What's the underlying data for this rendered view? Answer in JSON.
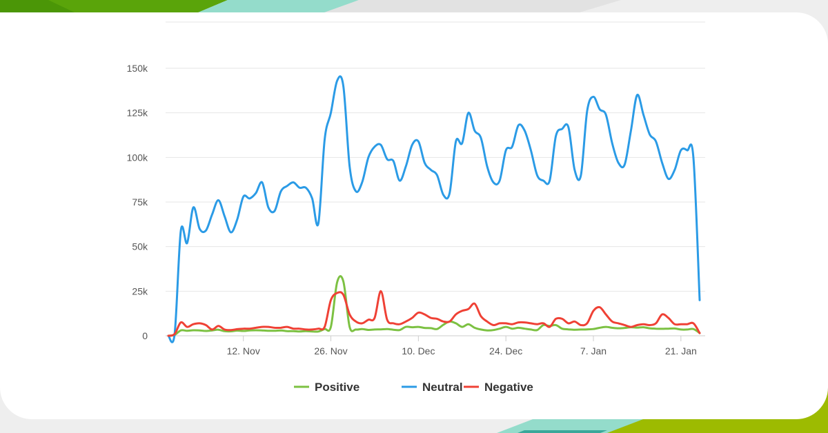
{
  "colors": {
    "positive": "#7cc142",
    "neutral": "#2b9be6",
    "negative": "#ef4135",
    "grid": "#e6e6e6",
    "accent_green": "#5aa40a",
    "accent_lime": "#a9c000",
    "accent_teal": "#94dccb"
  },
  "chart_data": {
    "type": "line",
    "title": "",
    "xlabel": "",
    "ylabel": "",
    "ylim": [
      0,
      150000
    ],
    "y_ticks": [
      {
        "value": 0,
        "label": "0"
      },
      {
        "value": 25000,
        "label": "25k"
      },
      {
        "value": 50000,
        "label": "50k"
      },
      {
        "value": 75000,
        "label": "75k"
      },
      {
        "value": 100000,
        "label": "100k"
      },
      {
        "value": 125000,
        "label": "125k"
      },
      {
        "value": 150000,
        "label": "150k"
      }
    ],
    "x_ticks": [
      {
        "date": "2017-11-12",
        "label": "12. Nov"
      },
      {
        "date": "2017-11-26",
        "label": "26. Nov"
      },
      {
        "date": "2017-12-10",
        "label": "10. Dec"
      },
      {
        "date": "2017-12-24",
        "label": "24. Dec"
      },
      {
        "date": "2018-01-07",
        "label": "7. Jan"
      },
      {
        "date": "2018-01-21",
        "label": "21. Jan"
      }
    ],
    "grid": true,
    "legend_position": "bottom-center",
    "x_dates": [
      "2017-10-31",
      "2017-11-01",
      "2017-11-02",
      "2017-11-03",
      "2017-11-04",
      "2017-11-05",
      "2017-11-06",
      "2017-11-07",
      "2017-11-08",
      "2017-11-09",
      "2017-11-10",
      "2017-11-11",
      "2017-11-12",
      "2017-11-13",
      "2017-11-14",
      "2017-11-15",
      "2017-11-16",
      "2017-11-17",
      "2017-11-18",
      "2017-11-19",
      "2017-11-20",
      "2017-11-21",
      "2017-11-22",
      "2017-11-23",
      "2017-11-24",
      "2017-11-25",
      "2017-11-26",
      "2017-11-27",
      "2017-11-28",
      "2017-11-29",
      "2017-11-30",
      "2017-12-01",
      "2017-12-02",
      "2017-12-03",
      "2017-12-04",
      "2017-12-05",
      "2017-12-06",
      "2017-12-07",
      "2017-12-08",
      "2017-12-09",
      "2017-12-10",
      "2017-12-11",
      "2017-12-12",
      "2017-12-13",
      "2017-12-14",
      "2017-12-15",
      "2017-12-16",
      "2017-12-17",
      "2017-12-18",
      "2017-12-19",
      "2017-12-20",
      "2017-12-21",
      "2017-12-22",
      "2017-12-23",
      "2017-12-24",
      "2017-12-25",
      "2017-12-26",
      "2017-12-27",
      "2017-12-28",
      "2017-12-29",
      "2017-12-30",
      "2017-12-31",
      "2018-01-01",
      "2018-01-02",
      "2018-01-03",
      "2018-01-04",
      "2018-01-05",
      "2018-01-06",
      "2018-01-07",
      "2018-01-08",
      "2018-01-09",
      "2018-01-10",
      "2018-01-11",
      "2018-01-12",
      "2018-01-13",
      "2018-01-14",
      "2018-01-15",
      "2018-01-16",
      "2018-01-17",
      "2018-01-18",
      "2018-01-19",
      "2018-01-20",
      "2018-01-21",
      "2018-01-22",
      "2018-01-23",
      "2018-01-24"
    ],
    "series": [
      {
        "name": "Positive",
        "values": [
          0,
          500,
          3000,
          2800,
          3100,
          3000,
          2700,
          3000,
          3400,
          2600,
          2500,
          2900,
          2700,
          3000,
          3100,
          3000,
          2800,
          2800,
          3000,
          2600,
          2600,
          2400,
          2600,
          2400,
          2400,
          3800,
          5000,
          30000,
          30500,
          5000,
          3500,
          3800,
          3300,
          3500,
          3600,
          3800,
          3400,
          3200,
          5000,
          4800,
          5000,
          4400,
          4300,
          3800,
          6200,
          8000,
          7000,
          5000,
          6500,
          4500,
          3500,
          3000,
          3200,
          4000,
          5000,
          4000,
          4500,
          4000,
          3500,
          3200,
          6000,
          5500,
          6000,
          4000,
          3600,
          3400,
          3500,
          3600,
          3800,
          4500,
          5000,
          4500,
          4200,
          4400,
          4800,
          4600,
          4800,
          4200,
          4000,
          3900,
          4000,
          4100,
          3500,
          3500,
          3800,
          1500
        ]
      },
      {
        "name": "Neutral",
        "values": [
          0,
          1000,
          59000,
          52000,
          72000,
          60000,
          59000,
          68000,
          76000,
          67000,
          58000,
          65000,
          78000,
          77000,
          80000,
          86000,
          72000,
          70000,
          81000,
          84000,
          86000,
          83000,
          83000,
          77000,
          63000,
          110000,
          125000,
          143000,
          140000,
          95000,
          81000,
          86000,
          100000,
          106000,
          107000,
          99000,
          98000,
          87000,
          95000,
          107000,
          109000,
          97000,
          93000,
          90000,
          79000,
          80000,
          109000,
          108000,
          125000,
          115000,
          111000,
          95000,
          86000,
          87000,
          104000,
          106000,
          118000,
          115000,
          104000,
          90000,
          87000,
          87000,
          112000,
          116000,
          117000,
          93000,
          90000,
          126000,
          134000,
          127000,
          124000,
          108000,
          97000,
          96000,
          115000,
          135000,
          124000,
          113000,
          109000,
          97000,
          88000,
          93000,
          104000,
          104000,
          100000,
          20000
        ]
      },
      {
        "name": "Negative",
        "values": [
          0,
          1000,
          7500,
          5000,
          6500,
          7000,
          6000,
          3500,
          5500,
          3500,
          3200,
          3700,
          4000,
          4000,
          4500,
          5000,
          5000,
          4500,
          4500,
          5000,
          4000,
          4000,
          3500,
          3500,
          4000,
          5000,
          20000,
          24000,
          23000,
          12000,
          8000,
          7000,
          9000,
          10000,
          25000,
          9000,
          7000,
          6500,
          8000,
          10000,
          13000,
          12000,
          10000,
          9500,
          8000,
          8000,
          12000,
          14000,
          15000,
          18000,
          11000,
          8000,
          6000,
          7000,
          7000,
          6500,
          7500,
          7500,
          7000,
          6500,
          7000,
          5000,
          9500,
          9500,
          7000,
          8000,
          6000,
          7000,
          14000,
          16000,
          12000,
          8000,
          7000,
          6000,
          5000,
          6000,
          6500,
          6000,
          7000,
          12000,
          10000,
          6500,
          6500,
          6500,
          7000,
          1500
        ]
      }
    ]
  }
}
